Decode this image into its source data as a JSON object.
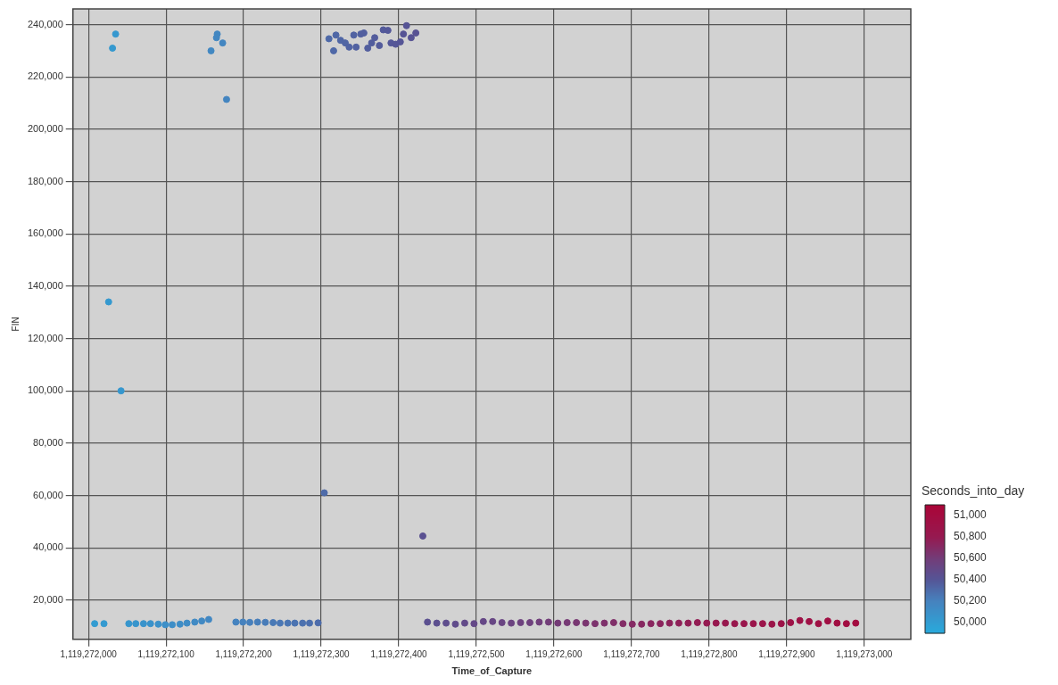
{
  "chart_data": {
    "type": "scatter",
    "xlabel": "Time_of_Capture",
    "ylabel": "FIN",
    "clabel": "Seconds_into_day",
    "xlim": [
      1119271980,
      1119273060
    ],
    "xticks": [
      {
        "value": 1119272000,
        "label": "1,119,272,000"
      },
      {
        "value": 1119272100,
        "label": "1,119,272,100"
      },
      {
        "value": 1119272200,
        "label": "1,119,272,200"
      },
      {
        "value": 1119272300,
        "label": "1,119,272,300"
      },
      {
        "value": 1119272400,
        "label": "1,119,272,400"
      },
      {
        "value": 1119272500,
        "label": "1,119,272,500"
      },
      {
        "value": 1119272600,
        "label": "1,119,272,600"
      },
      {
        "value": 1119272700,
        "label": "1,119,272,700"
      },
      {
        "value": 1119272800,
        "label": "1,119,272,800"
      },
      {
        "value": 1119272900,
        "label": "1,119,272,900"
      },
      {
        "value": 1119273000,
        "label": "1,119,273,000"
      }
    ],
    "ylim": [
      5000,
      246000
    ],
    "yticks": [
      {
        "value": 20000,
        "label": "20,000"
      },
      {
        "value": 40000,
        "label": "40,000"
      },
      {
        "value": 60000,
        "label": "60,000"
      },
      {
        "value": 80000,
        "label": "80,000"
      },
      {
        "value": 100000,
        "label": "100,000"
      },
      {
        "value": 120000,
        "label": "120,000"
      },
      {
        "value": 140000,
        "label": "140,000"
      },
      {
        "value": 160000,
        "label": "160,000"
      },
      {
        "value": 180000,
        "label": "180,000"
      },
      {
        "value": 200000,
        "label": "200,000"
      },
      {
        "value": 220000,
        "label": "220,000"
      },
      {
        "value": 240000,
        "label": "240,000"
      }
    ],
    "clim": [
      49900,
      51100
    ],
    "cticks": [
      {
        "value": 50000,
        "label": "50,000"
      },
      {
        "value": 50200,
        "label": "50,200"
      },
      {
        "value": 50400,
        "label": "50,400"
      },
      {
        "value": 50600,
        "label": "50,600"
      },
      {
        "value": 50800,
        "label": "50,800"
      },
      {
        "value": 51000,
        "label": "51,000"
      }
    ],
    "grid": true,
    "legend": false,
    "marker": "circle",
    "x": [
      1119272008,
      1119272020,
      1119272031,
      1119272035,
      1119272026,
      1119272042,
      1119272052,
      1119272061,
      1119272071,
      1119272080,
      1119272090,
      1119272099,
      1119272108,
      1119272118,
      1119272127,
      1119272137,
      1119272146,
      1119272155,
      1119272158,
      1119272165,
      1119272166,
      1119272173,
      1119272178,
      1119272190,
      1119272199,
      1119272208,
      1119272218,
      1119272228,
      1119272238,
      1119272247,
      1119272257,
      1119272266,
      1119272276,
      1119272285,
      1119272296,
      1119272304,
      1119272431,
      1119272310,
      1119272316,
      1119272319,
      1119272325,
      1119272331,
      1119272336,
      1119272342,
      1119272345,
      1119272351,
      1119272355,
      1119272360,
      1119272365,
      1119272369,
      1119272375,
      1119272380,
      1119272386,
      1119272390,
      1119272396,
      1119272402,
      1119272406,
      1119272410,
      1119272416,
      1119272422,
      1119272437,
      1119272449,
      1119272461,
      1119272473,
      1119272485,
      1119272497,
      1119272509,
      1119272521,
      1119272533,
      1119272545,
      1119272557,
      1119272569,
      1119272581,
      1119272593,
      1119272605,
      1119272617,
      1119272629,
      1119272641,
      1119272653,
      1119272665,
      1119272677,
      1119272689,
      1119272701,
      1119272713,
      1119272725,
      1119272737,
      1119272749,
      1119272761,
      1119272773,
      1119272785,
      1119272797,
      1119272809,
      1119272821,
      1119272833,
      1119272845,
      1119272857,
      1119272869,
      1119272881,
      1119272893,
      1119272905,
      1119272917,
      1119272929,
      1119272941,
      1119272953,
      1119272965,
      1119272977,
      1119272989
    ],
    "values": [
      11000,
      11000,
      231000,
      236400,
      134000,
      100000,
      11000,
      11000,
      11000,
      11000,
      10800,
      10600,
      10600,
      10800,
      11200,
      11600,
      12000,
      12600,
      230000,
      235000,
      236400,
      233000,
      211400,
      11600,
      11600,
      11500,
      11600,
      11500,
      11400,
      11200,
      11200,
      11200,
      11200,
      11200,
      11300,
      61000,
      44500,
      234600,
      230000,
      236000,
      234000,
      233000,
      231400,
      236000,
      231400,
      236400,
      236800,
      231000,
      233000,
      235000,
      232000,
      238000,
      237800,
      233000,
      232500,
      233400,
      236400,
      239600,
      235000,
      236800,
      11600,
      11200,
      11200,
      10800,
      11200,
      11000,
      11800,
      11800,
      11400,
      11200,
      11400,
      11400,
      11600,
      11600,
      11200,
      11400,
      11400,
      11200,
      11000,
      11200,
      11400,
      11000,
      10800,
      10800,
      11000,
      11000,
      11200,
      11200,
      11200,
      11400,
      11200,
      11200,
      11200,
      11000,
      11000,
      11000,
      11000,
      10800,
      11000,
      11400,
      12200,
      11800,
      11000,
      12000,
      11200,
      11000,
      11200
    ],
    "cvalues": [
      50008,
      50020,
      50031,
      50035,
      50026,
      50042,
      50052,
      50061,
      50071,
      50080,
      50090,
      50099,
      50108,
      50118,
      50127,
      50137,
      50146,
      50155,
      50158,
      50165,
      50166,
      50173,
      50178,
      50190,
      50199,
      50208,
      50218,
      50228,
      50238,
      50247,
      50257,
      50266,
      50276,
      50285,
      50296,
      50304,
      50431,
      50310,
      50316,
      50319,
      50325,
      50331,
      50336,
      50342,
      50345,
      50351,
      50355,
      50360,
      50365,
      50369,
      50375,
      50380,
      50386,
      50390,
      50396,
      50402,
      50406,
      50410,
      50416,
      50422,
      50437,
      50449,
      50461,
      50473,
      50485,
      50497,
      50509,
      50521,
      50533,
      50545,
      50557,
      50569,
      50581,
      50593,
      50605,
      50617,
      50629,
      50641,
      50653,
      50665,
      50677,
      50689,
      50701,
      50713,
      50725,
      50737,
      50749,
      50761,
      50773,
      50785,
      50797,
      50809,
      50821,
      50833,
      50845,
      50857,
      50869,
      50881,
      50893,
      50905,
      50917,
      50929,
      50941,
      50953,
      50965,
      50977,
      50989
    ]
  }
}
